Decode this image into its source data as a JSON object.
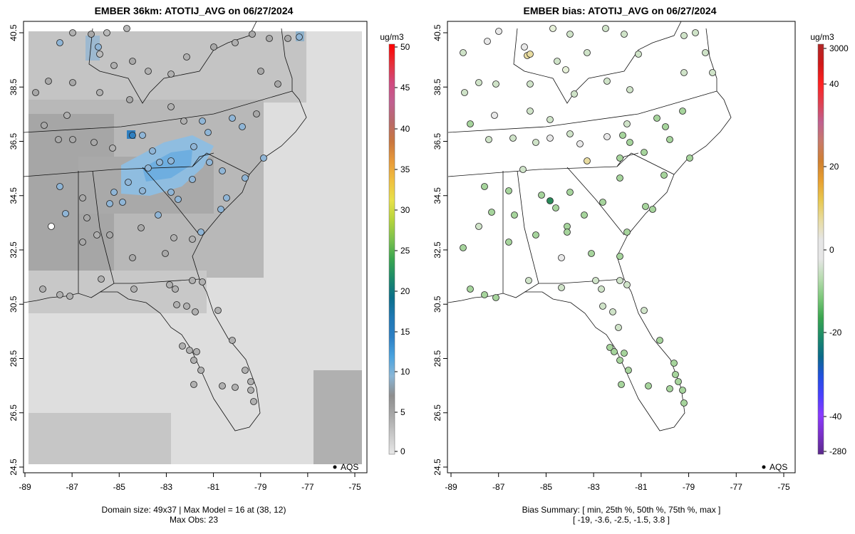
{
  "left_map": {
    "title": "EMBER 36km: ATOTIJ_AVG on 06/27/2024",
    "xticks": [
      "-89",
      "-87",
      "-85",
      "-83",
      "-81",
      "-79",
      "-77",
      "-75"
    ],
    "yticks": [
      "40.5",
      "38.5",
      "36.5",
      "34.5",
      "32.5",
      "30.5",
      "28.5",
      "26.5",
      "24.5"
    ],
    "colorbar": {
      "unit": "ug/m3",
      "ticks": [
        "50",
        "45",
        "40",
        "35",
        "30",
        "25",
        "20",
        "15",
        "10",
        "5",
        "0"
      ],
      "range": [
        0,
        50
      ],
      "colors": [
        "#e8e8e8",
        "#c8c8c8",
        "#a8a8a8",
        "#8e8e8e",
        "#8ab6d6",
        "#4aa3df",
        "#2c7fc4",
        "#1f78b4",
        "#0a6e8a",
        "#1c8a6a",
        "#3aa64f",
        "#7cc14e",
        "#b6d43c",
        "#e8e14a",
        "#f0c040",
        "#e89a3a",
        "#c9763e",
        "#b86a6a",
        "#c06090",
        "#d04a80",
        "#e6303a",
        "#ff0000"
      ]
    },
    "legend": "AQS",
    "caption_line1": "Domain size: 49x37 | Max Model = 16 at (38, 12)",
    "caption_line2": "Max Obs: 23"
  },
  "right_map": {
    "title": "EMBER bias: ATOTIJ_AVG on 06/27/2024",
    "xticks": [
      "-89",
      "-87",
      "-85",
      "-83",
      "-81",
      "-79",
      "-77",
      "-75"
    ],
    "yticks": [
      "40.5",
      "38.5",
      "36.5",
      "34.5",
      "32.5",
      "30.5",
      "28.5",
      "26.5",
      "24.5"
    ],
    "colorbar": {
      "unit": "ug/m3",
      "ticks": [
        "3000",
        "40",
        "20",
        "0",
        "-20",
        "-40",
        "-280"
      ],
      "range": [
        -280,
        3000
      ],
      "colors": [
        "#5a2a8a",
        "#7a30c8",
        "#8a3aff",
        "#4a40ff",
        "#2050e0",
        "#0a6a8a",
        "#1c8a6a",
        "#3aa64f",
        "#7cc87a",
        "#b8dcb0",
        "#e6e6e6",
        "#e6e6e6",
        "#e8dca0",
        "#e8c850",
        "#e8a030",
        "#d08030",
        "#c87a6a",
        "#c06090",
        "#e04050",
        "#ff2020",
        "#d01818",
        "#b02828"
      ]
    },
    "legend": "AQS",
    "caption_line1": "Bias Summary: [ min, 25th %, 50th %, 75th %, max ]",
    "caption_line2": "[ -19,   -3.6,   -2.5,   -1.5,   3.8 ]"
  }
}
